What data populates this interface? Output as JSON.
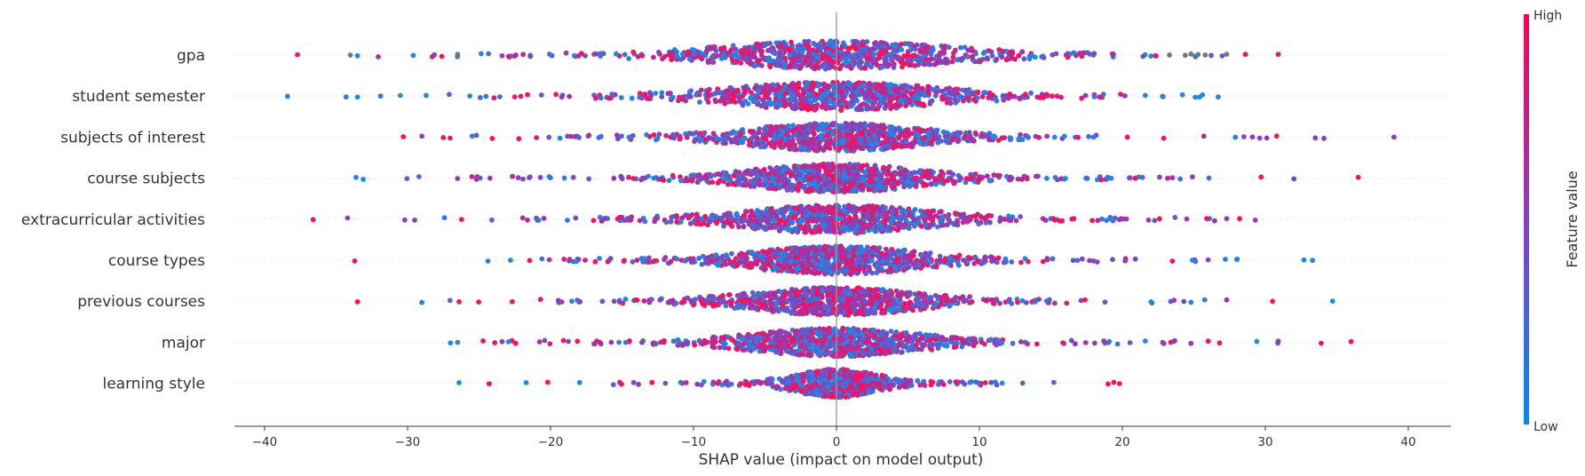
{
  "chart_data": {
    "type": "scatter",
    "subtype": "shap-beeswarm",
    "xlabel": "SHAP value (impact on model output)",
    "xlim": [
      -43,
      43
    ],
    "xticks": [
      -40,
      -30,
      -20,
      -10,
      0,
      10,
      20,
      30,
      40
    ],
    "features": [
      {
        "name": "gpa",
        "range": [
          -38,
          31
        ],
        "core": 5.5,
        "tail": 12,
        "density": 1.0,
        "outliers": [
          {
            "x": -37.7,
            "v": "high"
          },
          {
            "x": -34,
            "v": "gray"
          },
          {
            "x": -33.5,
            "v": "low"
          },
          {
            "x": -27.6,
            "v": "high"
          },
          {
            "x": -26.5,
            "v": "gray"
          },
          {
            "x": 22,
            "v": "low"
          },
          {
            "x": 23.3,
            "v": "gray"
          },
          {
            "x": 24.4,
            "v": "gray"
          },
          {
            "x": 24.8,
            "v": "gray"
          },
          {
            "x": 25.3,
            "v": "gray"
          },
          {
            "x": 25.8,
            "v": "gray"
          },
          {
            "x": 27.3,
            "v": "gray"
          },
          {
            "x": 28.6,
            "v": "high"
          },
          {
            "x": 30.9,
            "v": "high"
          }
        ]
      },
      {
        "name": "student semester",
        "range": [
          -38.5,
          27
        ],
        "core": 5.0,
        "tail": 11,
        "density": 1.0,
        "outliers": [
          {
            "x": -38.4,
            "v": "low"
          },
          {
            "x": -34.3,
            "v": "low"
          },
          {
            "x": -33.5,
            "v": "low"
          },
          {
            "x": -30.5,
            "v": "low"
          },
          {
            "x": -28.7,
            "v": "low"
          },
          {
            "x": 21.6,
            "v": "low"
          },
          {
            "x": 22.8,
            "v": "low"
          },
          {
            "x": 24.2,
            "v": "low"
          },
          {
            "x": 25.1,
            "v": "low"
          },
          {
            "x": 25.4,
            "v": "low"
          },
          {
            "x": 25.6,
            "v": "low"
          },
          {
            "x": 26.7,
            "v": "low"
          }
        ]
      },
      {
        "name": "subjects of interest",
        "range": [
          -30.5,
          39
        ],
        "core": 4.2,
        "tail": 11,
        "density": 1.0,
        "outliers": [
          {
            "x": -30.3,
            "v": "high"
          },
          {
            "x": -29.0,
            "v": "mid"
          },
          {
            "x": -27.5,
            "v": "high"
          },
          {
            "x": 27.9,
            "v": "low"
          },
          {
            "x": 28.5,
            "v": "mid"
          },
          {
            "x": 29.1,
            "v": "mid"
          },
          {
            "x": 29.6,
            "v": "mid"
          },
          {
            "x": 30.1,
            "v": "mid"
          },
          {
            "x": 33.5,
            "v": "mid"
          },
          {
            "x": 34.1,
            "v": "mid"
          },
          {
            "x": 39.0,
            "v": "mid"
          }
        ]
      },
      {
        "name": "course subjects",
        "range": [
          -33.5,
          37
        ],
        "core": 4.0,
        "tail": 11,
        "density": 1.0,
        "outliers": [
          {
            "x": -33.6,
            "v": "low"
          },
          {
            "x": -33.1,
            "v": "low"
          },
          {
            "x": -26.5,
            "v": "mid"
          },
          {
            "x": 22.6,
            "v": "mid"
          },
          {
            "x": 23.5,
            "v": "mid"
          },
          {
            "x": 24.9,
            "v": "mid"
          },
          {
            "x": 29.7,
            "v": "high"
          },
          {
            "x": 32.0,
            "v": "mid"
          },
          {
            "x": 36.5,
            "v": "high"
          }
        ]
      },
      {
        "name": "extracurricular activities",
        "range": [
          -36.5,
          29.5
        ],
        "core": 4.5,
        "tail": 11,
        "density": 1.0,
        "outliers": [
          {
            "x": -36.6,
            "v": "high"
          },
          {
            "x": -34.2,
            "v": "mid"
          },
          {
            "x": -30.2,
            "v": "mid"
          },
          {
            "x": -29.5,
            "v": "mid"
          },
          {
            "x": 19.4,
            "v": "low"
          },
          {
            "x": 19.8,
            "v": "mid"
          },
          {
            "x": 20.1,
            "v": "mid"
          },
          {
            "x": 22.6,
            "v": "high"
          },
          {
            "x": 24.5,
            "v": "mid"
          },
          {
            "x": 25.9,
            "v": "high"
          },
          {
            "x": 27.3,
            "v": "mid"
          },
          {
            "x": 28.2,
            "v": "high"
          },
          {
            "x": 29.3,
            "v": "mid"
          }
        ]
      },
      {
        "name": "course types",
        "range": [
          -34,
          33.5
        ],
        "core": 4.0,
        "tail": 10,
        "density": 1.0,
        "outliers": [
          {
            "x": -33.7,
            "v": "high"
          },
          {
            "x": -22.8,
            "v": "low"
          },
          {
            "x": 23.5,
            "v": "high"
          },
          {
            "x": 24.9,
            "v": "low"
          },
          {
            "x": 26.0,
            "v": "mid"
          },
          {
            "x": 27.2,
            "v": "low"
          },
          {
            "x": 28.0,
            "v": "low"
          },
          {
            "x": 32.7,
            "v": "low"
          },
          {
            "x": 33.3,
            "v": "low"
          }
        ]
      },
      {
        "name": "previous courses",
        "range": [
          -33.5,
          35
        ],
        "core": 4.0,
        "tail": 10,
        "density": 1.0,
        "outliers": [
          {
            "x": -33.5,
            "v": "high"
          },
          {
            "x": -29.0,
            "v": "low"
          },
          {
            "x": -26.4,
            "v": "high"
          },
          {
            "x": 22.0,
            "v": "low"
          },
          {
            "x": 24.3,
            "v": "mid"
          },
          {
            "x": 24.8,
            "v": "low"
          },
          {
            "x": 27.3,
            "v": "mid"
          },
          {
            "x": 30.5,
            "v": "high"
          },
          {
            "x": 34.7,
            "v": "low"
          }
        ]
      },
      {
        "name": "major",
        "range": [
          -27.5,
          36
        ],
        "core": 4.0,
        "tail": 10,
        "density": 1.0,
        "outliers": [
          {
            "x": -27.0,
            "v": "low"
          },
          {
            "x": -26.5,
            "v": "low"
          },
          {
            "x": -23.9,
            "v": "high"
          },
          {
            "x": 22.9,
            "v": "mid"
          },
          {
            "x": 23.6,
            "v": "mid"
          },
          {
            "x": 24.8,
            "v": "mid"
          },
          {
            "x": 26.0,
            "v": "high"
          },
          {
            "x": 26.8,
            "v": "high"
          },
          {
            "x": 29.4,
            "v": "low"
          },
          {
            "x": 30.9,
            "v": "mid"
          },
          {
            "x": 33.9,
            "v": "high"
          },
          {
            "x": 36.0,
            "v": "high"
          }
        ]
      },
      {
        "name": "learning style",
        "range": [
          -27,
          20
        ],
        "core": 2.0,
        "tail": 6,
        "density": 0.75,
        "outliers": [
          {
            "x": -26.4,
            "v": "low"
          },
          {
            "x": -24.3,
            "v": "high"
          },
          {
            "x": -21.7,
            "v": "low"
          },
          {
            "x": -20.2,
            "v": "high"
          },
          {
            "x": 19.0,
            "v": "high"
          },
          {
            "x": 19.4,
            "v": "high"
          },
          {
            "x": 19.8,
            "v": "high"
          }
        ]
      }
    ],
    "colorbar": {
      "label": "Feature value",
      "high_label": "High",
      "low_label": "Low",
      "low_color": "#008bfb",
      "high_color": "#ff0052"
    },
    "colors": {
      "low": "#1e88e5",
      "mid": "#8a3ebd",
      "high": "#ff0d57",
      "gray": "#777777"
    }
  }
}
